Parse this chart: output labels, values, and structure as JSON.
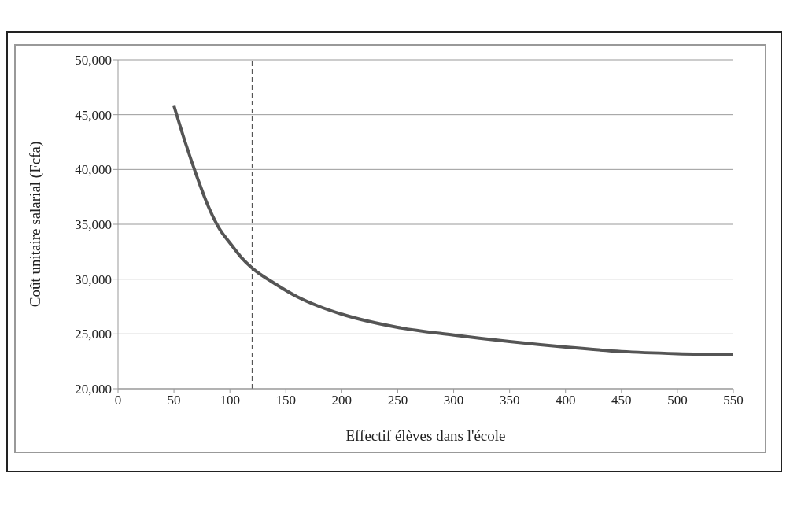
{
  "chart_data": {
    "type": "line",
    "xlabel": "Effectif élèves dans l'école",
    "ylabel": "Coût unitaire salarial (Fcfa)",
    "x": [
      50,
      60,
      70,
      80,
      90,
      100,
      110,
      120,
      140,
      160,
      180,
      200,
      250,
      300,
      350,
      400,
      450,
      500,
      550
    ],
    "series": [
      {
        "color": "#555555",
        "values": [
          45800,
          42500,
          39500,
          36800,
          34700,
          33300,
          32000,
          31000,
          29600,
          28400,
          27500,
          26800,
          25600,
          24900,
          24300,
          23800,
          23400,
          23200,
          23100
        ]
      }
    ],
    "xlim": [
      0,
      550
    ],
    "xticks": [
      0,
      50,
      100,
      150,
      200,
      250,
      300,
      350,
      400,
      450,
      500,
      550
    ],
    "ylim": [
      20000,
      50000
    ],
    "yticks": [
      {
        "value": 20000,
        "label": "20,000"
      },
      {
        "value": 25000,
        "label": "25,000"
      },
      {
        "value": 30000,
        "label": "30,000"
      },
      {
        "value": 35000,
        "label": "35,000"
      },
      {
        "value": 40000,
        "label": "40,000"
      },
      {
        "value": 45000,
        "label": "45,000"
      },
      {
        "value": 50000,
        "label": "50,000"
      }
    ],
    "grid": "y",
    "legend": false,
    "marker": "none",
    "line_style": "solid",
    "ref_lines": [
      {
        "axis": "x",
        "value": 120,
        "color": "#555555",
        "line_style": "dashed"
      }
    ]
  }
}
